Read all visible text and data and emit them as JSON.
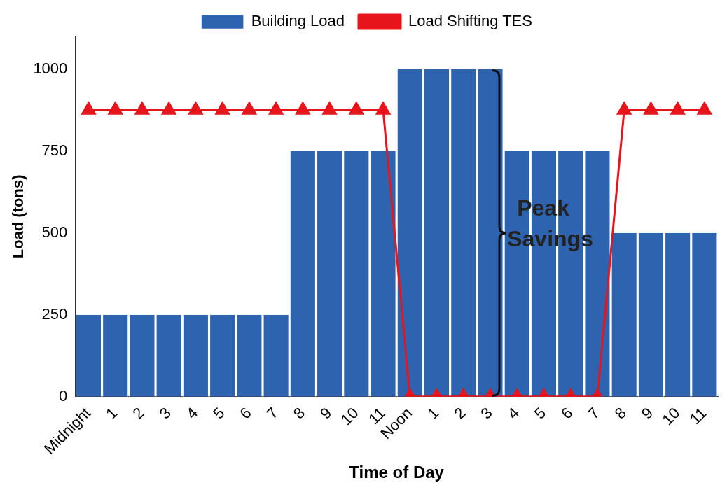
{
  "chart_data": {
    "type": "bar",
    "xlabel": "Time of Day",
    "ylabel": "Load (tons)",
    "categories": [
      "Midnight",
      "1",
      "2",
      "3",
      "4",
      "5",
      "6",
      "7",
      "8",
      "9",
      "10",
      "11",
      "Noon",
      "1",
      "2",
      "3",
      "4",
      "5",
      "6",
      "7",
      "8",
      "9",
      "10",
      "11"
    ],
    "series": [
      {
        "name": "Building Load",
        "color": "#2e63b0",
        "values": [
          250,
          250,
          250,
          250,
          250,
          250,
          250,
          250,
          750,
          750,
          750,
          750,
          1000,
          1000,
          1000,
          1000,
          750,
          750,
          750,
          750,
          500,
          500,
          500,
          500
        ]
      },
      {
        "name": "Load Shifting TES",
        "type": "line",
        "color": "#e8141c",
        "marker": "triangle",
        "values": [
          875,
          875,
          875,
          875,
          875,
          875,
          875,
          875,
          875,
          875,
          875,
          875,
          0,
          0,
          0,
          0,
          0,
          0,
          0,
          0,
          875,
          875,
          875,
          875
        ]
      }
    ],
    "ylim": [
      0,
      1100
    ],
    "yticks": [
      0,
      250,
      500,
      750,
      1000
    ],
    "grid": false,
    "legend": "top",
    "annotations": [
      "Peak Savings"
    ]
  }
}
